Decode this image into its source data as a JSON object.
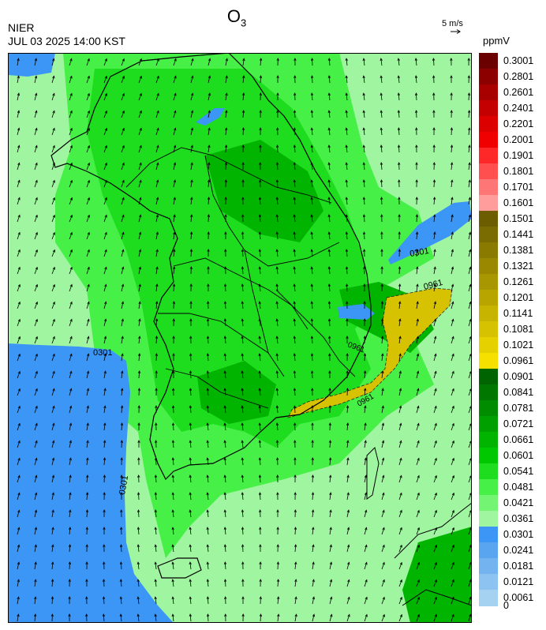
{
  "header": {
    "title_main": "O",
    "title_sub": "3",
    "agency": "NIER",
    "timestamp": "JUL 03 2025 14:00 KST",
    "wind_reference": "5 m/s",
    "unit": "ppmV"
  },
  "contour_labels": [
    "0301",
    "0961",
    "0301",
    "0301",
    "0961",
    "0961",
    "0301"
  ],
  "legend": {
    "labels": [
      "0.3001",
      "0.2801",
      "0.2601",
      "0.2401",
      "0.2201",
      "0.2001",
      "0.1901",
      "0.1801",
      "0.1701",
      "0.1601",
      "0.1501",
      "0.1441",
      "0.1381",
      "0.1321",
      "0.1261",
      "0.1201",
      "0.1141",
      "0.1081",
      "0.1021",
      "0.0961",
      "0.0901",
      "0.0841",
      "0.0781",
      "0.0721",
      "0.0661",
      "0.0601",
      "0.0541",
      "0.0481",
      "0.0421",
      "0.0361",
      "0.0301",
      "0.0241",
      "0.0181",
      "0.0121",
      "0.0061",
      "0"
    ],
    "colors": [
      "#6b0000",
      "#8c0000",
      "#a80000",
      "#c40000",
      "#dc0000",
      "#f00000",
      "#ff2828",
      "#ff4f4f",
      "#ff7676",
      "#ff9c9c",
      "#6b5d00",
      "#7a6c00",
      "#8a7a00",
      "#998800",
      "#a89700",
      "#b8a500",
      "#c7b400",
      "#d6c200",
      "#e5d100",
      "#f5e000",
      "#006400",
      "#007800",
      "#008c00",
      "#00a000",
      "#00b400",
      "#00c800",
      "#1edc1e",
      "#46f046",
      "#73f573",
      "#a0f5a0",
      "#3c96f5",
      "#5aa5f0",
      "#73b4f0",
      "#8cc3f0",
      "#a5d2f0"
    ],
    "annotation": "boundaries at listed values; color blocks start below each label"
  },
  "map_colors": {
    "sea_blue": "#3c96f5",
    "light_green": "#a0f5a0",
    "mid_green": "#46f046",
    "green": "#1edc1e",
    "dark_green": "#00b400",
    "yellow_high": "#d6c200"
  }
}
